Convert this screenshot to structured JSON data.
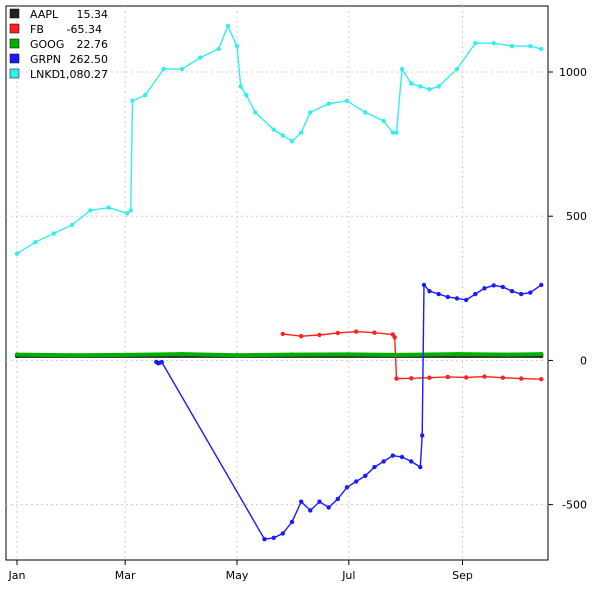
{
  "chart_data": {
    "type": "line",
    "x_tick_labels": [
      "Jan",
      "Mar",
      "May",
      "Jul",
      "Sep"
    ],
    "x_tick_days": [
      0,
      59,
      120,
      181,
      243
    ],
    "x_domain_days": [
      0,
      288
    ],
    "y_tick_labels": [
      "-500",
      "0",
      "500",
      "1000"
    ],
    "y_ticks": [
      -500,
      0,
      500,
      1000
    ],
    "ylim": [
      -640,
      1215
    ],
    "y_axis_side": "right",
    "grid": true,
    "legend_position": "top-left",
    "series": [
      {
        "name": "AAPL",
        "label_value": "15.34",
        "color": "#222222",
        "x": [
          0,
          286
        ],
        "y": [
          15.5,
          15.5
        ]
      },
      {
        "name": "FB",
        "label_value": "-65.34",
        "color": "#ff2020",
        "x": [
          145,
          155,
          165,
          175,
          185,
          195,
          205,
          206,
          207,
          215,
          225,
          235,
          245,
          255,
          265,
          275,
          286
        ],
        "y": [
          92,
          84,
          88,
          95,
          100,
          96,
          90,
          80,
          -63,
          -62,
          -60,
          -57,
          -59,
          -56,
          -60,
          -63,
          -65
        ]
      },
      {
        "name": "GOOG",
        "label_value": "22.76",
        "color": "#00b000",
        "x": [
          0,
          30,
          60,
          90,
          120,
          150,
          180,
          210,
          240,
          270,
          286
        ],
        "y": [
          20,
          18,
          19,
          22,
          18,
          20,
          21,
          19,
          22,
          20,
          22
        ]
      },
      {
        "name": "GRPN",
        "label_value": "262.50",
        "color": "#1a1aff",
        "x": [
          76,
          77,
          78,
          79,
          135,
          140,
          145,
          150,
          155,
          160,
          165,
          170,
          175,
          180,
          185,
          190,
          195,
          200,
          205,
          210,
          215,
          220,
          221,
          222,
          225,
          230,
          235,
          240,
          245,
          250,
          255,
          260,
          265,
          270,
          275,
          280,
          286
        ],
        "y": [
          -5,
          -10,
          -8,
          -6,
          -620,
          -615,
          -600,
          -560,
          -490,
          -520,
          -490,
          -510,
          -480,
          -440,
          -420,
          -400,
          -370,
          -350,
          -330,
          -335,
          -350,
          -370,
          -260,
          262,
          240,
          230,
          220,
          215,
          210,
          230,
          250,
          260,
          255,
          240,
          230,
          235,
          262
        ]
      },
      {
        "name": "LNKD",
        "label_value": "1,080.27",
        "color": "#33eeee",
        "x": [
          0,
          10,
          20,
          30,
          40,
          50,
          60,
          62,
          63,
          70,
          80,
          90,
          100,
          110,
          115,
          120,
          122,
          125,
          130,
          140,
          145,
          150,
          155,
          160,
          170,
          180,
          190,
          200,
          205,
          207,
          210,
          215,
          220,
          225,
          230,
          240,
          250,
          260,
          270,
          280,
          286
        ],
        "y": [
          370,
          410,
          440,
          470,
          520,
          530,
          510,
          520,
          900,
          920,
          1010,
          1010,
          1050,
          1080,
          1160,
          1090,
          950,
          920,
          860,
          800,
          780,
          760,
          790,
          860,
          890,
          900,
          860,
          830,
          790,
          790,
          1010,
          960,
          950,
          940,
          950,
          1010,
          1100,
          1100,
          1090,
          1090,
          1080
        ]
      }
    ]
  }
}
